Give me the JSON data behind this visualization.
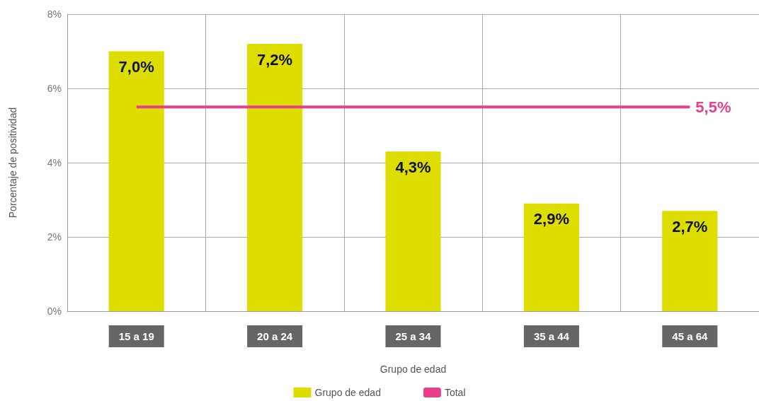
{
  "chart_data": {
    "type": "bar",
    "xlabel": "Grupo de edad",
    "ylabel": "Porcentaje de positividad",
    "categories": [
      "15 a 19",
      "20 a 24",
      "25 a 34",
      "35 a 44",
      "45 a 64"
    ],
    "series": [
      {
        "name": "Grupo de edad",
        "color": "#dddd00",
        "values": [
          7.0,
          7.2,
          4.3,
          2.9,
          2.7
        ],
        "value_labels": [
          "7,0%",
          "7,2%",
          "4,3%",
          "2,9%",
          "2,7%"
        ]
      },
      {
        "name": "Total",
        "type": "line",
        "color": "#e83e8c",
        "values": [
          5.5,
          5.5,
          5.5,
          5.5,
          5.5
        ],
        "value_labels": [
          null,
          null,
          null,
          null,
          "5,5%"
        ]
      }
    ],
    "ylim": [
      0,
      8
    ],
    "yticks": [
      {
        "value": 0,
        "label": "0%"
      },
      {
        "value": 2,
        "label": "2%"
      },
      {
        "value": 4,
        "label": "4%"
      },
      {
        "value": 6,
        "label": "6%"
      },
      {
        "value": 8,
        "label": "8%"
      }
    ],
    "grid": true,
    "legend": "bottom",
    "marker": "none",
    "line_style": "solid"
  }
}
